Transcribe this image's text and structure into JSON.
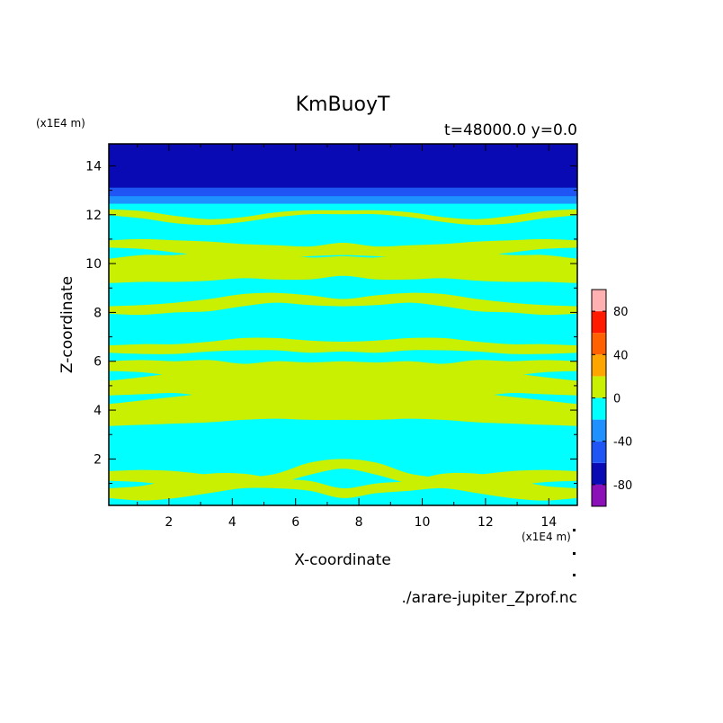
{
  "chart_data": {
    "type": "heatmap",
    "title": "KmBuoyT",
    "subtitle": "t=48000.0 y=0.0",
    "xlabel": "X-coordinate",
    "ylabel": "Z-coordinate",
    "x_unit": "(x1E4 m)",
    "y_unit": "(x1E4 m)",
    "source_file": "./arare-jupiter_Zprof.nc",
    "xlim": [
      0.1,
      14.9
    ],
    "ylim": [
      0.1,
      14.9
    ],
    "x_ticks": [
      2,
      4,
      6,
      8,
      10,
      12,
      14
    ],
    "y_ticks": [
      2,
      4,
      6,
      8,
      10,
      12,
      14
    ],
    "colorbar": {
      "levels": [
        -100,
        -80,
        -60,
        -40,
        -20,
        0,
        20,
        40,
        60,
        80,
        100
      ],
      "colors": [
        "#8b10b8",
        "#0a0ab4",
        "#1f55f5",
        "#1e90ff",
        "#00ffff",
        "#c8f000",
        "#ffa500",
        "#ff6000",
        "#ff1a00",
        "#ffb0b0"
      ],
      "tick_labels": [
        "80",
        "40",
        "0",
        "-40",
        "-80"
      ],
      "tick_values": [
        80,
        40,
        0,
        -40,
        -80
      ]
    },
    "fields": {
      "background_level": "-20 to 0",
      "top_layers": [
        {
          "z_from": 13.1,
          "z_to": 14.9,
          "level": "-80 to -60"
        },
        {
          "z_from": 12.75,
          "z_to": 13.1,
          "level": "-60 to -40"
        },
        {
          "z_from": 12.45,
          "z_to": 12.75,
          "level": "-40 to -20"
        }
      ],
      "bands": [
        {
          "level": "0 to 20",
          "z_center": [
            0.6,
            0.6,
            0.8,
            1.0,
            1.1,
            1.0,
            0.9,
            0.6,
            0.8,
            0.9,
            1.1,
            1.0,
            0.8,
            0.6,
            0.6
          ],
          "half_width": [
            0.2,
            0.3,
            0.4,
            0.4,
            0.3,
            0.2,
            0.2,
            0.2,
            0.2,
            0.2,
            0.3,
            0.4,
            0.4,
            0.3,
            0.2
          ]
        },
        {
          "level": "0 to 20",
          "z_center": [
            1.3,
            1.3,
            1.2,
            1.1,
            1.1,
            1.2,
            1.6,
            1.8,
            1.6,
            1.2,
            1.1,
            1.1,
            1.2,
            1.3,
            1.3
          ],
          "half_width": [
            0.2,
            0.25,
            0.3,
            0.25,
            0.15,
            0.2,
            0.25,
            0.2,
            0.25,
            0.2,
            0.15,
            0.25,
            0.3,
            0.25,
            0.2
          ]
        },
        {
          "level": "0 to 20",
          "z_center": [
            3.8,
            3.9,
            4.0,
            4.1,
            4.2,
            4.3,
            4.3,
            4.3,
            4.3,
            4.3,
            4.2,
            4.1,
            4.0,
            3.9,
            3.8
          ],
          "half_width": [
            0.45,
            0.5,
            0.55,
            0.6,
            0.6,
            0.65,
            0.7,
            0.7,
            0.7,
            0.65,
            0.6,
            0.6,
            0.55,
            0.5,
            0.45
          ]
        },
        {
          "level": "0 to 20",
          "z_center": [
            4.9,
            5.0,
            5.1,
            5.0,
            5.0,
            5.0,
            5.0,
            5.0,
            5.0,
            5.0,
            5.0,
            5.0,
            5.1,
            5.0,
            4.9
          ],
          "half_width": [
            0.3,
            0.35,
            0.4,
            0.45,
            0.45,
            0.5,
            0.5,
            0.5,
            0.5,
            0.5,
            0.45,
            0.45,
            0.4,
            0.35,
            0.3
          ]
        },
        {
          "level": "0 to 20",
          "z_center": [
            5.8,
            5.8,
            5.7,
            5.7,
            5.6,
            5.7,
            5.6,
            5.6,
            5.6,
            5.7,
            5.6,
            5.7,
            5.7,
            5.8,
            5.8
          ],
          "half_width": [
            0.2,
            0.25,
            0.3,
            0.35,
            0.3,
            0.3,
            0.35,
            0.4,
            0.35,
            0.3,
            0.3,
            0.35,
            0.3,
            0.25,
            0.2
          ]
        },
        {
          "level": "0 to 20",
          "z_center": [
            6.5,
            6.5,
            6.5,
            6.6,
            6.7,
            6.7,
            6.6,
            6.6,
            6.6,
            6.7,
            6.7,
            6.6,
            6.5,
            6.5,
            6.5
          ],
          "half_width": [
            0.15,
            0.2,
            0.2,
            0.2,
            0.25,
            0.25,
            0.25,
            0.2,
            0.25,
            0.25,
            0.25,
            0.2,
            0.2,
            0.2,
            0.15
          ]
        },
        {
          "level": "0 to 20",
          "z_center": [
            8.1,
            8.1,
            8.2,
            8.3,
            8.5,
            8.6,
            8.5,
            8.4,
            8.5,
            8.6,
            8.5,
            8.3,
            8.2,
            8.1,
            8.1
          ],
          "half_width": [
            0.15,
            0.2,
            0.2,
            0.25,
            0.25,
            0.2,
            0.2,
            0.15,
            0.2,
            0.2,
            0.25,
            0.25,
            0.2,
            0.2,
            0.15
          ]
        },
        {
          "level": "0 to 20",
          "z_center": [
            9.7,
            9.8,
            9.8,
            9.9,
            10.0,
            9.9,
            9.8,
            9.9,
            9.8,
            9.9,
            10.0,
            9.9,
            9.8,
            9.8,
            9.7
          ],
          "half_width": [
            0.5,
            0.55,
            0.55,
            0.6,
            0.6,
            0.55,
            0.45,
            0.4,
            0.45,
            0.55,
            0.6,
            0.6,
            0.55,
            0.55,
            0.5
          ]
        },
        {
          "level": "0 to 20",
          "z_center": [
            10.8,
            10.8,
            10.7,
            10.6,
            10.5,
            10.5,
            10.5,
            10.6,
            10.5,
            10.5,
            10.5,
            10.6,
            10.7,
            10.8,
            10.8
          ],
          "half_width": [
            0.15,
            0.2,
            0.25,
            0.3,
            0.3,
            0.25,
            0.2,
            0.25,
            0.2,
            0.25,
            0.3,
            0.3,
            0.25,
            0.2,
            0.15
          ]
        },
        {
          "level": "0 to 20",
          "z_center": [
            12.1,
            12.0,
            11.8,
            11.7,
            11.8,
            12.0,
            12.1,
            12.1,
            12.1,
            12.0,
            11.8,
            11.7,
            11.8,
            12.0,
            12.1
          ],
          "half_width": [
            0.12,
            0.15,
            0.15,
            0.12,
            0.1,
            0.1,
            0.08,
            0.08,
            0.08,
            0.1,
            0.1,
            0.12,
            0.15,
            0.15,
            0.12
          ]
        }
      ]
    }
  }
}
